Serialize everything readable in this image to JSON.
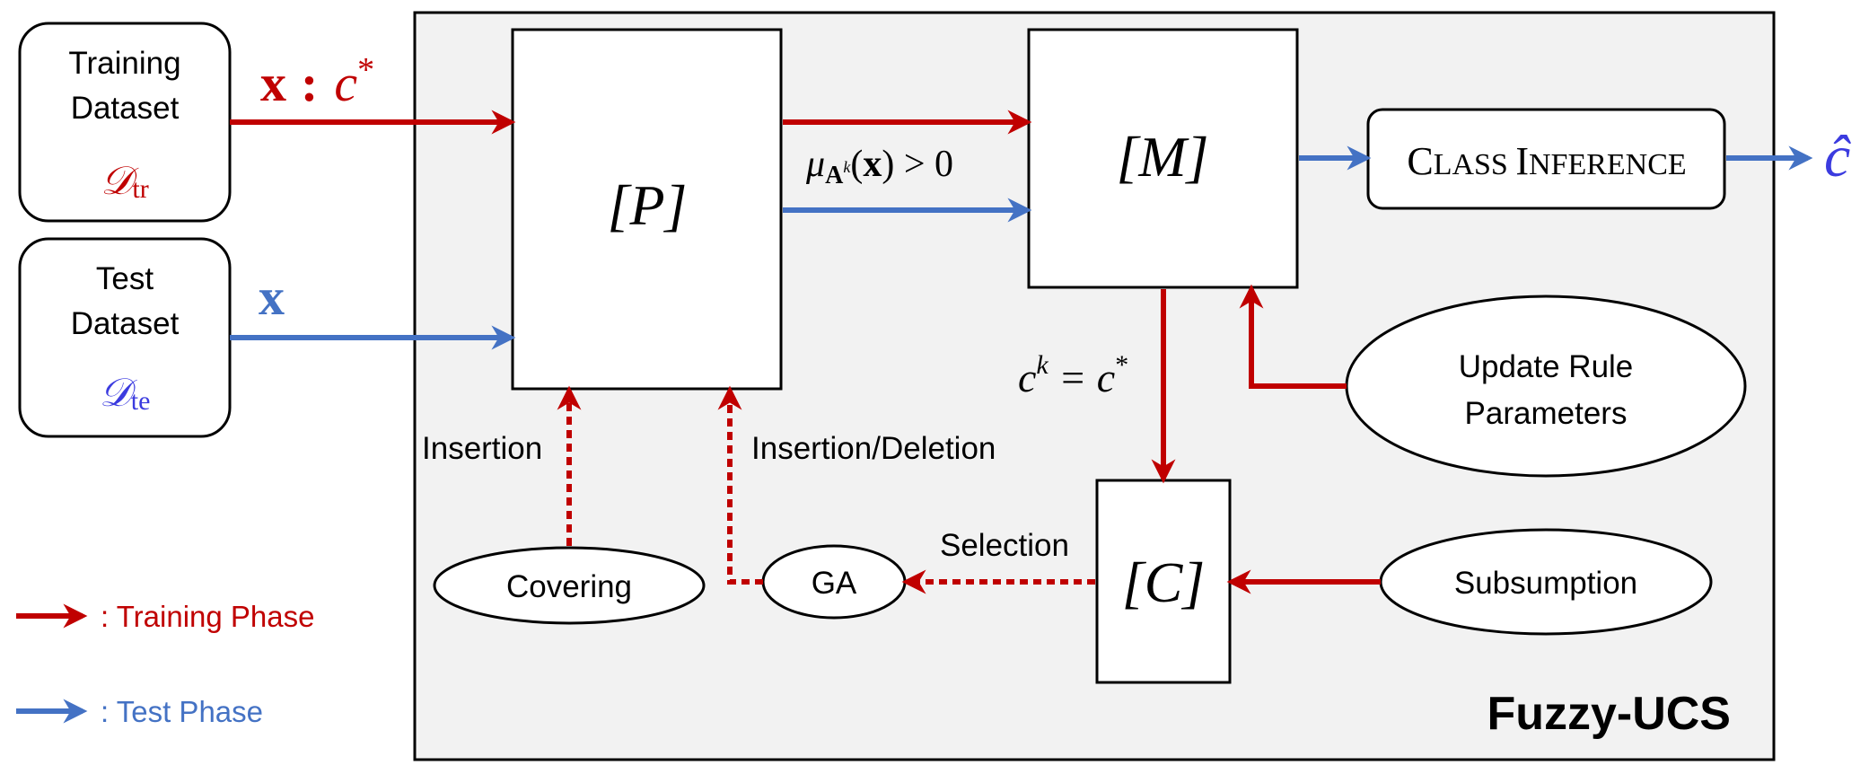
{
  "colors": {
    "training": "#c00000",
    "test": "#4472c4",
    "script_blue": "#3b3bdf",
    "panel_bg": "#f2f2f2"
  },
  "inputs": {
    "training": {
      "line1": "Training",
      "line2": "Dataset",
      "symbol": "𝒟",
      "subscript": "tr"
    },
    "test": {
      "line1": "Test",
      "line2": "Dataset",
      "symbol": "𝒟",
      "subscript": "te"
    }
  },
  "signals": {
    "train_x": "x",
    "train_sep": ":",
    "train_c": "c",
    "train_star": "*",
    "test_x": "x",
    "output_symbol": "ĉ"
  },
  "sets": {
    "population": "[P]",
    "match": "[M]",
    "correct": "[C]"
  },
  "condition": {
    "mu": "μ",
    "A": "A",
    "k": "k",
    "paren_open": "(",
    "x": "x",
    "paren_close": ") > 0"
  },
  "correct_condition": {
    "c": "c",
    "k": "k",
    "eq": " = c",
    "star": "*"
  },
  "components": {
    "class_inference_c1": "C",
    "class_inference_rest1": "LASS ",
    "class_inference_c2": "I",
    "class_inference_rest2": "NFERENCE",
    "update_line1": "Update Rule",
    "update_line2": "Parameters",
    "covering": "Covering",
    "ga": "GA",
    "subsumption": "Subsumption"
  },
  "edge_labels": {
    "insertion": "Insertion",
    "insertion_deletion": "Insertion/Deletion",
    "selection": "Selection"
  },
  "system_name": "Fuzzy-UCS",
  "legend": {
    "training": ": Training Phase",
    "test": ": Test Phase"
  }
}
